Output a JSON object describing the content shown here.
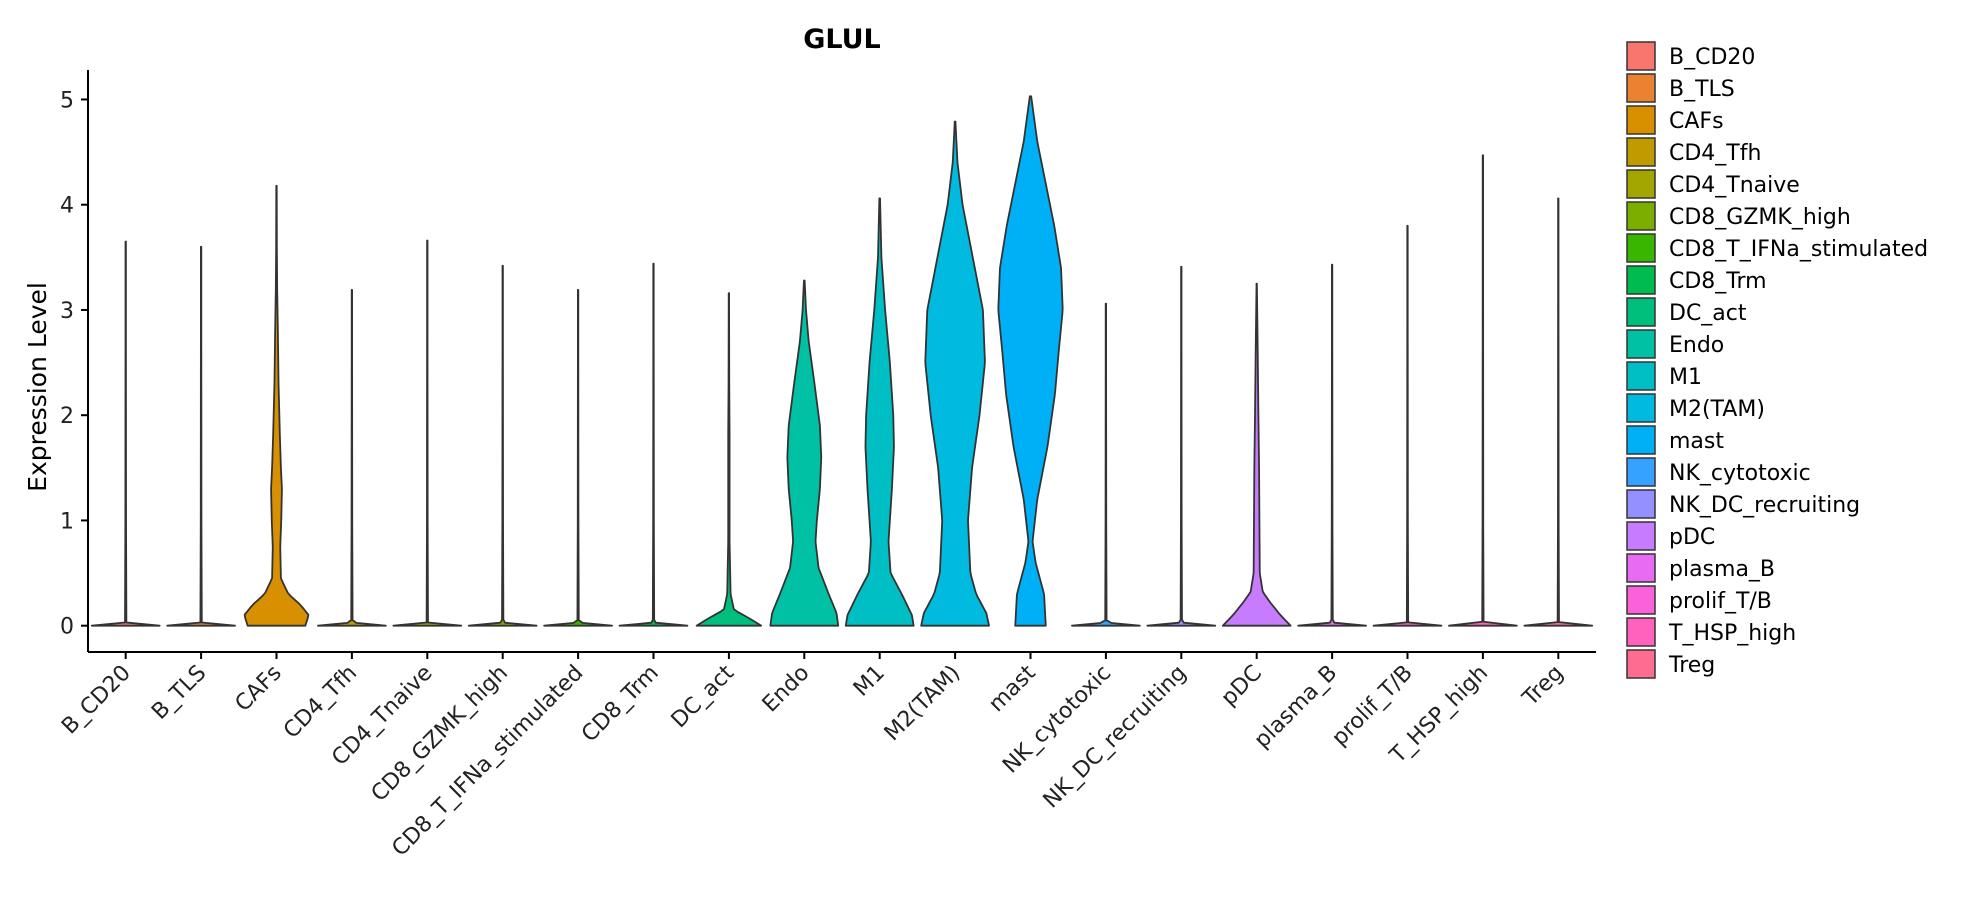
{
  "chart_data": {
    "type": "violin",
    "title": "GLUL",
    "xlabel": "",
    "ylabel": "Expression Level",
    "ylim": [
      -0.25,
      5.28
    ],
    "yticks": [
      0,
      1,
      2,
      3,
      4,
      5
    ],
    "categories": [
      "B_CD20",
      "B_TLS",
      "CAFs",
      "CD4_Tfh",
      "CD4_Tnaive",
      "CD8_GZMK_high",
      "CD8_T_IFNa_stimulated",
      "CD8_Trm",
      "DC_act",
      "Endo",
      "M1",
      "M2(TAM)",
      "mast",
      "NK_cytotoxic",
      "NK_DC_recruiting",
      "pDC",
      "plasma_B",
      "prolif_T/B",
      "T_HSP_high",
      "Treg"
    ],
    "colors": [
      "#F8766D",
      "#EA8331",
      "#D89000",
      "#C09B00",
      "#A3A500",
      "#7CAE00",
      "#39B600",
      "#00BB4E",
      "#00BF7D",
      "#00C1A3",
      "#00BFC4",
      "#00BAE0",
      "#00B0F6",
      "#35A2FF",
      "#9590FF",
      "#C77CFF",
      "#E76BF3",
      "#FA62DB",
      "#FF62BC",
      "#FF6C91"
    ],
    "max_values": [
      3.65,
      3.6,
      4.18,
      3.19,
      3.66,
      3.42,
      3.19,
      3.44,
      3.16,
      3.28,
      4.06,
      4.79,
      5.03,
      3.06,
      3.41,
      3.25,
      3.43,
      3.8,
      4.47,
      4.06
    ],
    "density_profiles": [
      [
        [
          0,
          1
        ],
        [
          0.03,
          0.02
        ],
        [
          1,
          0.01
        ]
      ],
      [
        [
          0,
          1
        ],
        [
          0.03,
          0.02
        ],
        [
          1,
          0.01
        ]
      ],
      [
        [
          0,
          0.85
        ],
        [
          0.1,
          0.95
        ],
        [
          0.2,
          0.7
        ],
        [
          0.3,
          0.35
        ],
        [
          0.45,
          0.13
        ],
        [
          0.75,
          0.11
        ],
        [
          1.0,
          0.14
        ],
        [
          1.3,
          0.16
        ],
        [
          1.5,
          0.13
        ],
        [
          1.8,
          0.1
        ],
        [
          2.3,
          0.06
        ],
        [
          2.8,
          0.04
        ],
        [
          3.2,
          0.02
        ],
        [
          3.6,
          0.01
        ],
        [
          4.18,
          0.006
        ]
      ],
      [
        [
          0,
          1
        ],
        [
          0.03,
          0.02
        ],
        [
          1,
          0.01
        ]
      ],
      [
        [
          0,
          1
        ],
        [
          0.03,
          0.02
        ],
        [
          1,
          0.01
        ]
      ],
      [
        [
          0,
          1
        ],
        [
          0.03,
          0.02
        ],
        [
          1,
          0.01
        ]
      ],
      [
        [
          0,
          1
        ],
        [
          0.03,
          0.02
        ],
        [
          1,
          0.01
        ]
      ],
      [
        [
          0,
          1
        ],
        [
          0.03,
          0.02
        ],
        [
          1,
          0.01
        ]
      ],
      [
        [
          0,
          0.95
        ],
        [
          0.07,
          0.6
        ],
        [
          0.15,
          0.15
        ],
        [
          0.3,
          0.05
        ],
        [
          0.8,
          0.02
        ],
        [
          1.8,
          0.02
        ],
        [
          2.3,
          0.01
        ],
        [
          3.16,
          0.005
        ]
      ],
      [
        [
          0,
          1.0
        ],
        [
          0.12,
          0.95
        ],
        [
          0.3,
          0.72
        ],
        [
          0.55,
          0.42
        ],
        [
          0.8,
          0.33
        ],
        [
          1.0,
          0.37
        ],
        [
          1.3,
          0.46
        ],
        [
          1.6,
          0.5
        ],
        [
          1.9,
          0.46
        ],
        [
          2.3,
          0.3
        ],
        [
          2.7,
          0.13
        ],
        [
          3.0,
          0.05
        ],
        [
          3.28,
          0.01
        ]
      ],
      [
        [
          0,
          1.0
        ],
        [
          0.1,
          0.95
        ],
        [
          0.3,
          0.65
        ],
        [
          0.5,
          0.32
        ],
        [
          0.8,
          0.26
        ],
        [
          1.3,
          0.36
        ],
        [
          1.7,
          0.42
        ],
        [
          2.0,
          0.4
        ],
        [
          2.5,
          0.3
        ],
        [
          3.0,
          0.16
        ],
        [
          3.5,
          0.05
        ],
        [
          4.06,
          0.01
        ]
      ],
      [
        [
          0,
          1.0
        ],
        [
          0.12,
          0.92
        ],
        [
          0.3,
          0.62
        ],
        [
          0.5,
          0.45
        ],
        [
          1.0,
          0.38
        ],
        [
          1.5,
          0.5
        ],
        [
          2.0,
          0.72
        ],
        [
          2.5,
          0.88
        ],
        [
          3.0,
          0.82
        ],
        [
          3.5,
          0.52
        ],
        [
          4.0,
          0.22
        ],
        [
          4.4,
          0.07
        ],
        [
          4.79,
          0.01
        ]
      ],
      [
        [
          0,
          0.45
        ],
        [
          0.3,
          0.4
        ],
        [
          0.6,
          0.15
        ],
        [
          0.8,
          0.06
        ],
        [
          1.2,
          0.2
        ],
        [
          1.7,
          0.5
        ],
        [
          2.2,
          0.72
        ],
        [
          2.6,
          0.83
        ],
        [
          3.0,
          0.95
        ],
        [
          3.4,
          0.9
        ],
        [
          3.8,
          0.7
        ],
        [
          4.2,
          0.45
        ],
        [
          4.6,
          0.2
        ],
        [
          5.03,
          0.02
        ]
      ],
      [
        [
          0,
          1
        ],
        [
          0.03,
          0.02
        ],
        [
          1,
          0.01
        ]
      ],
      [
        [
          0,
          1
        ],
        [
          0.03,
          0.02
        ],
        [
          1,
          0.01
        ]
      ],
      [
        [
          0,
          1.0
        ],
        [
          0.1,
          0.7
        ],
        [
          0.22,
          0.4
        ],
        [
          0.32,
          0.18
        ],
        [
          0.5,
          0.09
        ],
        [
          1.0,
          0.08
        ],
        [
          1.5,
          0.07
        ],
        [
          2.0,
          0.05
        ],
        [
          2.6,
          0.03
        ],
        [
          3.25,
          0.005
        ]
      ],
      [
        [
          0,
          1
        ],
        [
          0.03,
          0.02
        ],
        [
          1,
          0.01
        ]
      ],
      [
        [
          0,
          1
        ],
        [
          0.03,
          0.02
        ],
        [
          1,
          0.01
        ]
      ],
      [
        [
          0,
          1
        ],
        [
          0.03,
          0.02
        ],
        [
          1,
          0.01
        ]
      ],
      [
        [
          0,
          1
        ],
        [
          0.03,
          0.02
        ],
        [
          1,
          0.01
        ]
      ]
    ],
    "legend": {
      "position": "right",
      "entries": [
        "B_CD20",
        "B_TLS",
        "CAFs",
        "CD4_Tfh",
        "CD4_Tnaive",
        "CD8_GZMK_high",
        "CD8_T_IFNa_stimulated",
        "CD8_Trm",
        "DC_act",
        "Endo",
        "M1",
        "M2(TAM)",
        "mast",
        "NK_cytotoxic",
        "NK_DC_recruiting",
        "pDC",
        "plasma_B",
        "prolif_T/B",
        "T_HSP_high",
        "Treg"
      ]
    },
    "grid": false
  }
}
